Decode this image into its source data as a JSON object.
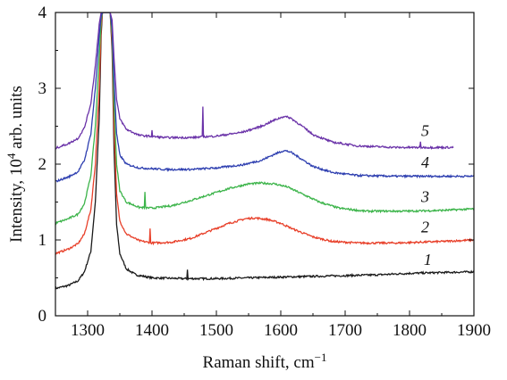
{
  "chart_data": {
    "type": "line",
    "xlabel": "Raman shift, cm",
    "xlabel_sup": "−1",
    "ylabel": "Intensity, 10",
    "ylabel_sup": "4",
    "ylabel_suffix": " arb. units",
    "xlim": [
      1250,
      1900
    ],
    "ylim": [
      0,
      4
    ],
    "x_ticks": [
      1300,
      1400,
      1500,
      1600,
      1700,
      1800,
      1900
    ],
    "y_ticks": [
      0,
      1,
      2,
      3,
      4
    ],
    "grid": false,
    "legend": "none (series labelled inline)",
    "series": [
      {
        "label": "1",
        "color": "#1a1a1a",
        "x_end": 1900,
        "points": [
          [
            1250,
            0.36
          ],
          [
            1270,
            0.4
          ],
          [
            1285,
            0.46
          ],
          [
            1295,
            0.58
          ],
          [
            1305,
            0.85
          ],
          [
            1312,
            1.5
          ],
          [
            1318,
            2.6
          ],
          [
            1321,
            3.7
          ],
          [
            1323,
            4.0
          ],
          [
            1335,
            4.0
          ],
          [
            1338,
            3.5
          ],
          [
            1341,
            2.2
          ],
          [
            1345,
            1.2
          ],
          [
            1350,
            0.82
          ],
          [
            1360,
            0.62
          ],
          [
            1375,
            0.54
          ],
          [
            1400,
            0.5
          ],
          [
            1450,
            0.49
          ],
          [
            1500,
            0.49
          ],
          [
            1550,
            0.5
          ],
          [
            1600,
            0.51
          ],
          [
            1650,
            0.52
          ],
          [
            1700,
            0.53
          ],
          [
            1750,
            0.54
          ],
          [
            1800,
            0.56
          ],
          [
            1850,
            0.57
          ],
          [
            1900,
            0.58
          ]
        ],
        "spikes": [
          [
            1455,
            0.12
          ]
        ]
      },
      {
        "label": "2",
        "color": "#e8402a",
        "x_end": 1900,
        "points": [
          [
            1250,
            0.82
          ],
          [
            1270,
            0.88
          ],
          [
            1285,
            0.95
          ],
          [
            1295,
            1.08
          ],
          [
            1305,
            1.4
          ],
          [
            1312,
            2.0
          ],
          [
            1318,
            3.0
          ],
          [
            1321,
            3.8
          ],
          [
            1323,
            4.0
          ],
          [
            1335,
            4.0
          ],
          [
            1338,
            3.6
          ],
          [
            1341,
            2.5
          ],
          [
            1345,
            1.6
          ],
          [
            1350,
            1.25
          ],
          [
            1360,
            1.08
          ],
          [
            1380,
            0.99
          ],
          [
            1400,
            0.96
          ],
          [
            1430,
            0.97
          ],
          [
            1460,
            1.02
          ],
          [
            1490,
            1.12
          ],
          [
            1520,
            1.22
          ],
          [
            1545,
            1.28
          ],
          [
            1560,
            1.29
          ],
          [
            1580,
            1.27
          ],
          [
            1600,
            1.22
          ],
          [
            1620,
            1.14
          ],
          [
            1650,
            1.04
          ],
          [
            1680,
            0.98
          ],
          [
            1720,
            0.96
          ],
          [
            1780,
            0.96
          ],
          [
            1850,
            0.98
          ],
          [
            1900,
            1.0
          ]
        ],
        "spikes": [
          [
            1397,
            0.18
          ]
        ]
      },
      {
        "label": "3",
        "color": "#3cb44a",
        "x_end": 1900,
        "points": [
          [
            1250,
            1.22
          ],
          [
            1270,
            1.28
          ],
          [
            1285,
            1.34
          ],
          [
            1295,
            1.48
          ],
          [
            1305,
            1.85
          ],
          [
            1312,
            2.5
          ],
          [
            1318,
            3.4
          ],
          [
            1321,
            3.9
          ],
          [
            1323,
            4.0
          ],
          [
            1335,
            4.0
          ],
          [
            1338,
            3.7
          ],
          [
            1341,
            2.8
          ],
          [
            1345,
            2.0
          ],
          [
            1350,
            1.65
          ],
          [
            1360,
            1.5
          ],
          [
            1380,
            1.43
          ],
          [
            1400,
            1.42
          ],
          [
            1430,
            1.45
          ],
          [
            1460,
            1.52
          ],
          [
            1490,
            1.6
          ],
          [
            1520,
            1.68
          ],
          [
            1550,
            1.74
          ],
          [
            1570,
            1.75
          ],
          [
            1590,
            1.74
          ],
          [
            1610,
            1.7
          ],
          [
            1630,
            1.62
          ],
          [
            1660,
            1.5
          ],
          [
            1690,
            1.42
          ],
          [
            1730,
            1.38
          ],
          [
            1800,
            1.38
          ],
          [
            1850,
            1.39
          ],
          [
            1900,
            1.41
          ]
        ],
        "spikes": [
          [
            1389,
            0.2
          ]
        ]
      },
      {
        "label": "4",
        "color": "#2e3fb0",
        "x_end": 1900,
        "points": [
          [
            1250,
            1.77
          ],
          [
            1270,
            1.83
          ],
          [
            1285,
            1.9
          ],
          [
            1295,
            2.05
          ],
          [
            1305,
            2.4
          ],
          [
            1312,
            3.0
          ],
          [
            1318,
            3.7
          ],
          [
            1321,
            3.95
          ],
          [
            1323,
            4.0
          ],
          [
            1335,
            4.0
          ],
          [
            1338,
            3.8
          ],
          [
            1341,
            3.1
          ],
          [
            1345,
            2.4
          ],
          [
            1350,
            2.12
          ],
          [
            1360,
            2.0
          ],
          [
            1380,
            1.95
          ],
          [
            1420,
            1.93
          ],
          [
            1460,
            1.93
          ],
          [
            1500,
            1.95
          ],
          [
            1540,
            1.99
          ],
          [
            1570,
            2.05
          ],
          [
            1590,
            2.13
          ],
          [
            1605,
            2.18
          ],
          [
            1615,
            2.16
          ],
          [
            1630,
            2.08
          ],
          [
            1650,
            1.97
          ],
          [
            1680,
            1.89
          ],
          [
            1720,
            1.85
          ],
          [
            1780,
            1.84
          ],
          [
            1850,
            1.84
          ],
          [
            1900,
            1.84
          ]
        ],
        "spikes": []
      },
      {
        "label": "5",
        "color": "#6a32a8",
        "x_end": 1868,
        "points": [
          [
            1250,
            2.21
          ],
          [
            1270,
            2.27
          ],
          [
            1285,
            2.34
          ],
          [
            1295,
            2.48
          ],
          [
            1305,
            2.8
          ],
          [
            1312,
            3.3
          ],
          [
            1318,
            3.85
          ],
          [
            1321,
            4.0
          ],
          [
            1335,
            4.0
          ],
          [
            1338,
            3.9
          ],
          [
            1341,
            3.4
          ],
          [
            1345,
            2.85
          ],
          [
            1350,
            2.6
          ],
          [
            1360,
            2.46
          ],
          [
            1380,
            2.38
          ],
          [
            1420,
            2.35
          ],
          [
            1460,
            2.35
          ],
          [
            1500,
            2.37
          ],
          [
            1540,
            2.42
          ],
          [
            1570,
            2.5
          ],
          [
            1590,
            2.58
          ],
          [
            1605,
            2.63
          ],
          [
            1615,
            2.61
          ],
          [
            1630,
            2.52
          ],
          [
            1650,
            2.39
          ],
          [
            1680,
            2.29
          ],
          [
            1720,
            2.24
          ],
          [
            1780,
            2.22
          ],
          [
            1830,
            2.22
          ],
          [
            1868,
            2.22
          ]
        ],
        "spikes": [
          [
            1479,
            0.4
          ],
          [
            1400,
            0.08
          ],
          [
            1817,
            0.07
          ]
        ]
      }
    ]
  }
}
